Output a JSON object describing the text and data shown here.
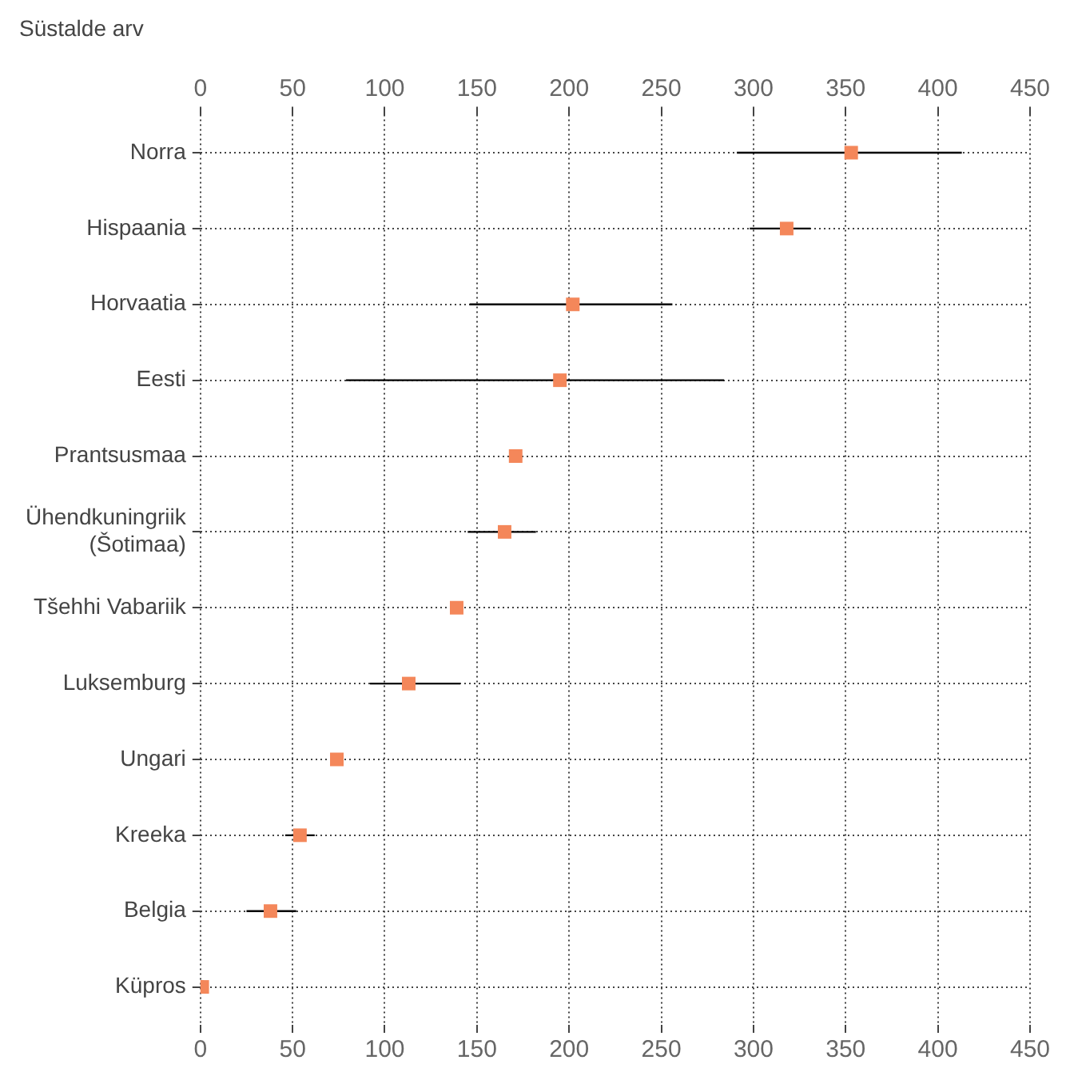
{
  "chart_data": {
    "type": "scatter",
    "orientation": "horizontal",
    "title": "Süstalde arv",
    "marker": "square",
    "categories": [
      "Norra",
      "Hispaania",
      "Horvaatia",
      "Eesti",
      "Prantsusmaa",
      "Ühendkuningriik (Šotimaa)",
      "Tšehhi Vabariik",
      "Luksemburg",
      "Ungari",
      "Kreeka",
      "Belgia",
      "Küpros"
    ],
    "series": [
      {
        "color": "#f4875a",
        "values": [
          353,
          318,
          202,
          195,
          171,
          165,
          139,
          113,
          74,
          54,
          38,
          1
        ],
        "errors": [
          [
            291,
            413
          ],
          [
            298,
            331
          ],
          [
            146,
            256
          ],
          [
            79,
            284
          ],
          null,
          [
            145,
            182
          ],
          null,
          [
            92,
            141
          ],
          null,
          [
            46,
            62
          ],
          [
            25,
            52
          ],
          null
        ]
      }
    ],
    "xlim": [
      0,
      450
    ],
    "xticks": [
      0,
      50,
      100,
      150,
      200,
      250,
      300,
      350,
      400,
      450
    ],
    "x2lim": [
      0,
      450
    ],
    "x2ticks": [
      0,
      50,
      100,
      150,
      200,
      250,
      300,
      350,
      400,
      450
    ],
    "grid": true,
    "legend": false
  }
}
